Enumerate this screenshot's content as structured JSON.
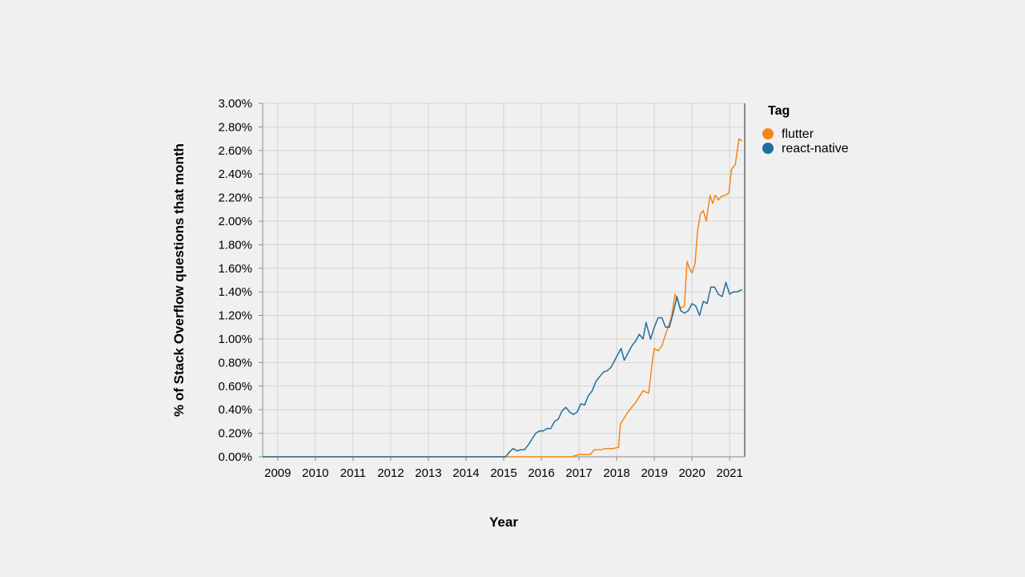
{
  "chart_data": {
    "type": "line",
    "xlabel": "Year",
    "ylabel": "% of Stack Overflow questions that month",
    "xlim": [
      2008.6,
      2021.4
    ],
    "ylim": [
      0,
      3.0
    ],
    "x_ticks": [
      2009,
      2010,
      2011,
      2012,
      2013,
      2014,
      2015,
      2016,
      2017,
      2018,
      2019,
      2020,
      2021
    ],
    "x_tick_labels": [
      "2009",
      "2010",
      "2011",
      "2012",
      "2013",
      "2014",
      "2015",
      "2016",
      "2017",
      "2018",
      "2019",
      "2020",
      "2021"
    ],
    "y_ticks": [
      0,
      0.2,
      0.4,
      0.6,
      0.8,
      1.0,
      1.2,
      1.4,
      1.6,
      1.8,
      2.0,
      2.2,
      2.4,
      2.6,
      2.8,
      3.0
    ],
    "y_tick_labels": [
      "0.00%",
      "0.20%",
      "0.40%",
      "0.60%",
      "0.80%",
      "1.00%",
      "1.20%",
      "1.40%",
      "1.60%",
      "1.80%",
      "2.00%",
      "2.20%",
      "2.40%",
      "2.60%",
      "2.80%",
      "3.00%"
    ],
    "grid": true,
    "legend": {
      "title": "Tag",
      "position": "top-right"
    },
    "series": [
      {
        "name": "flutter",
        "color": "#f58518",
        "points": [
          [
            2008.6,
            0
          ],
          [
            2016.8,
            0
          ],
          [
            2017.0,
            0.02
          ],
          [
            2017.3,
            0.02
          ],
          [
            2017.4,
            0.06
          ],
          [
            2017.6,
            0.06
          ],
          [
            2017.7,
            0.07
          ],
          [
            2017.9,
            0.07
          ],
          [
            2018.05,
            0.08
          ],
          [
            2018.1,
            0.28
          ],
          [
            2018.3,
            0.38
          ],
          [
            2018.5,
            0.46
          ],
          [
            2018.7,
            0.56
          ],
          [
            2018.85,
            0.54
          ],
          [
            2018.95,
            0.82
          ],
          [
            2019.0,
            0.92
          ],
          [
            2019.1,
            0.9
          ],
          [
            2019.2,
            0.94
          ],
          [
            2019.3,
            1.04
          ],
          [
            2019.45,
            1.18
          ],
          [
            2019.55,
            1.38
          ],
          [
            2019.65,
            1.3
          ],
          [
            2019.7,
            1.26
          ],
          [
            2019.8,
            1.28
          ],
          [
            2019.87,
            1.66
          ],
          [
            2019.93,
            1.6
          ],
          [
            2020.0,
            1.56
          ],
          [
            2020.08,
            1.64
          ],
          [
            2020.15,
            1.92
          ],
          [
            2020.22,
            2.06
          ],
          [
            2020.3,
            2.09
          ],
          [
            2020.38,
            2.0
          ],
          [
            2020.48,
            2.22
          ],
          [
            2020.55,
            2.15
          ],
          [
            2020.62,
            2.22
          ],
          [
            2020.7,
            2.18
          ],
          [
            2020.78,
            2.21
          ],
          [
            2020.88,
            2.22
          ],
          [
            2020.98,
            2.24
          ],
          [
            2021.05,
            2.44
          ],
          [
            2021.15,
            2.48
          ],
          [
            2021.25,
            2.7
          ],
          [
            2021.33,
            2.68
          ]
        ]
      },
      {
        "name": "react-native",
        "color": "#1f6f9f",
        "points": [
          [
            2008.6,
            0
          ],
          [
            2015.05,
            0
          ],
          [
            2015.15,
            0.04
          ],
          [
            2015.25,
            0.07
          ],
          [
            2015.35,
            0.05
          ],
          [
            2015.45,
            0.06
          ],
          [
            2015.55,
            0.06
          ],
          [
            2015.65,
            0.1
          ],
          [
            2015.75,
            0.15
          ],
          [
            2015.85,
            0.2
          ],
          [
            2015.95,
            0.22
          ],
          [
            2016.05,
            0.22
          ],
          [
            2016.15,
            0.24
          ],
          [
            2016.25,
            0.24
          ],
          [
            2016.35,
            0.3
          ],
          [
            2016.45,
            0.32
          ],
          [
            2016.55,
            0.39
          ],
          [
            2016.65,
            0.42
          ],
          [
            2016.75,
            0.38
          ],
          [
            2016.85,
            0.36
          ],
          [
            2016.95,
            0.38
          ],
          [
            2017.05,
            0.45
          ],
          [
            2017.15,
            0.44
          ],
          [
            2017.25,
            0.52
          ],
          [
            2017.35,
            0.56
          ],
          [
            2017.45,
            0.64
          ],
          [
            2017.55,
            0.68
          ],
          [
            2017.65,
            0.72
          ],
          [
            2017.75,
            0.73
          ],
          [
            2017.85,
            0.76
          ],
          [
            2017.95,
            0.82
          ],
          [
            2018.05,
            0.88
          ],
          [
            2018.12,
            0.92
          ],
          [
            2018.2,
            0.82
          ],
          [
            2018.3,
            0.88
          ],
          [
            2018.4,
            0.94
          ],
          [
            2018.5,
            0.98
          ],
          [
            2018.6,
            1.04
          ],
          [
            2018.7,
            1.0
          ],
          [
            2018.78,
            1.14
          ],
          [
            2018.9,
            1.0
          ],
          [
            2019.0,
            1.1
          ],
          [
            2019.1,
            1.18
          ],
          [
            2019.2,
            1.18
          ],
          [
            2019.3,
            1.1
          ],
          [
            2019.4,
            1.1
          ],
          [
            2019.5,
            1.22
          ],
          [
            2019.6,
            1.36
          ],
          [
            2019.7,
            1.24
          ],
          [
            2019.8,
            1.22
          ],
          [
            2019.9,
            1.24
          ],
          [
            2020.0,
            1.3
          ],
          [
            2020.1,
            1.28
          ],
          [
            2020.2,
            1.2
          ],
          [
            2020.3,
            1.32
          ],
          [
            2020.4,
            1.3
          ],
          [
            2020.5,
            1.44
          ],
          [
            2020.6,
            1.44
          ],
          [
            2020.7,
            1.38
          ],
          [
            2020.8,
            1.36
          ],
          [
            2020.9,
            1.48
          ],
          [
            2021.0,
            1.38
          ],
          [
            2021.1,
            1.4
          ],
          [
            2021.2,
            1.4
          ],
          [
            2021.33,
            1.42
          ]
        ]
      }
    ]
  }
}
